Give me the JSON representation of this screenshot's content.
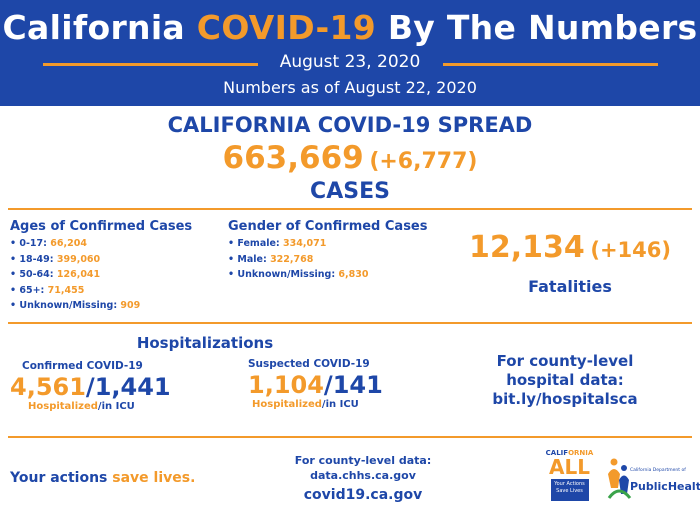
{
  "header": {
    "title_prefix": "California ",
    "title_highlight": "COVID-19",
    "title_suffix": " By The Numbers",
    "date": "August 23, 2020",
    "as_of": "Numbers as of August 22, 2020"
  },
  "spread": {
    "title": "CALIFORNIA COVID-19 SPREAD",
    "cases_total": "663,669",
    "cases_delta": "(+6,777)",
    "cases_label": "CASES"
  },
  "ages": {
    "title": "Ages of Confirmed Cases",
    "items": [
      {
        "label": "• 0-17: ",
        "value": "66,204"
      },
      {
        "label": "• 18-49: ",
        "value": "399,060"
      },
      {
        "label": "• 50-64: ",
        "value": "126,041"
      },
      {
        "label": "• 65+: ",
        "value": "71,455"
      },
      {
        "label": "• Unknown/Missing: ",
        "value": "909"
      }
    ]
  },
  "gender": {
    "title": "Gender of Confirmed Cases",
    "items": [
      {
        "label": "• Female: ",
        "value": "334,071"
      },
      {
        "label": "• Male: ",
        "value": "322,768"
      },
      {
        "label": "• Unknown/Missing: ",
        "value": "6,830"
      }
    ]
  },
  "fatalities": {
    "total": "12,134",
    "delta": "(+146)",
    "label": "Fatalities"
  },
  "hospitalizations": {
    "title": "Hospitalizations",
    "confirmed": {
      "label": "Confirmed COVID-19",
      "hospitalized": "4,561",
      "icu": "1,441",
      "sub_hosp": "Hospitalized",
      "sub_icu": "/in ICU"
    },
    "suspected": {
      "label": "Suspected COVID-19",
      "hospitalized": "1,104",
      "icu": "141",
      "sub_hosp": "Hospitalized",
      "sub_icu": "/in ICU"
    },
    "county_line1": "For county-level",
    "county_line2": "hospital data:",
    "county_link": "bit.ly/hospitalsca"
  },
  "footer": {
    "actions_prefix": "Your actions ",
    "actions_highlight": "save lives.",
    "data_line1": "For county-level data:",
    "data_link": "data.chhs.ca.gov",
    "covid_link": "covid19.ca.gov",
    "ca_all_top_a": "CALIF",
    "ca_all_top_b": "ORNIA",
    "ca_all_word": "ALL",
    "ca_all_box": "Your Actions Save Lives",
    "ph_dept": "California Department of",
    "ph_name": "PublicHealth"
  },
  "colors": {
    "brand_blue": "#1e47a8",
    "accent_orange": "#f39a2b"
  }
}
